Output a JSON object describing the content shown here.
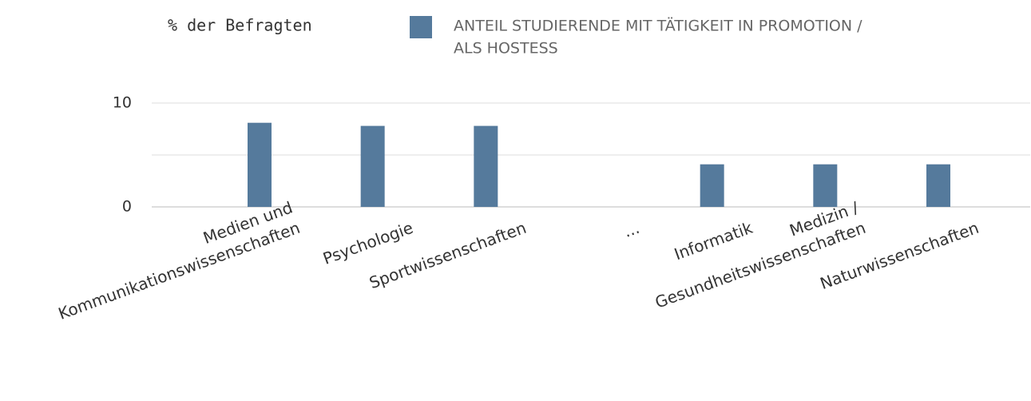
{
  "chart_data": {
    "type": "bar",
    "y_axis_label": "% der Befragten",
    "categories": [
      [
        "Medien und",
        "Kommunikationswissenschaften"
      ],
      [
        "Psychologie"
      ],
      [
        "Sportwissenschaften"
      ],
      [
        "..."
      ],
      [
        "Informatik"
      ],
      [
        "Medizin /",
        "Gesundheitswissenschaften"
      ],
      [
        "Naturwissenschaften"
      ]
    ],
    "series": [
      {
        "name": [
          "ANTEIL STUDIERENDE MIT TÄTIGKEIT IN PROMOTION /",
          "ALS HOSTESS"
        ],
        "color": "#557a9c",
        "values": [
          8.1,
          7.8,
          7.8,
          null,
          4.1,
          4.1,
          4.1
        ]
      }
    ],
    "ylim": [
      0,
      10
    ],
    "yticks": [
      0,
      10
    ],
    "ygrid": [
      0,
      5,
      10
    ],
    "grid": true
  }
}
